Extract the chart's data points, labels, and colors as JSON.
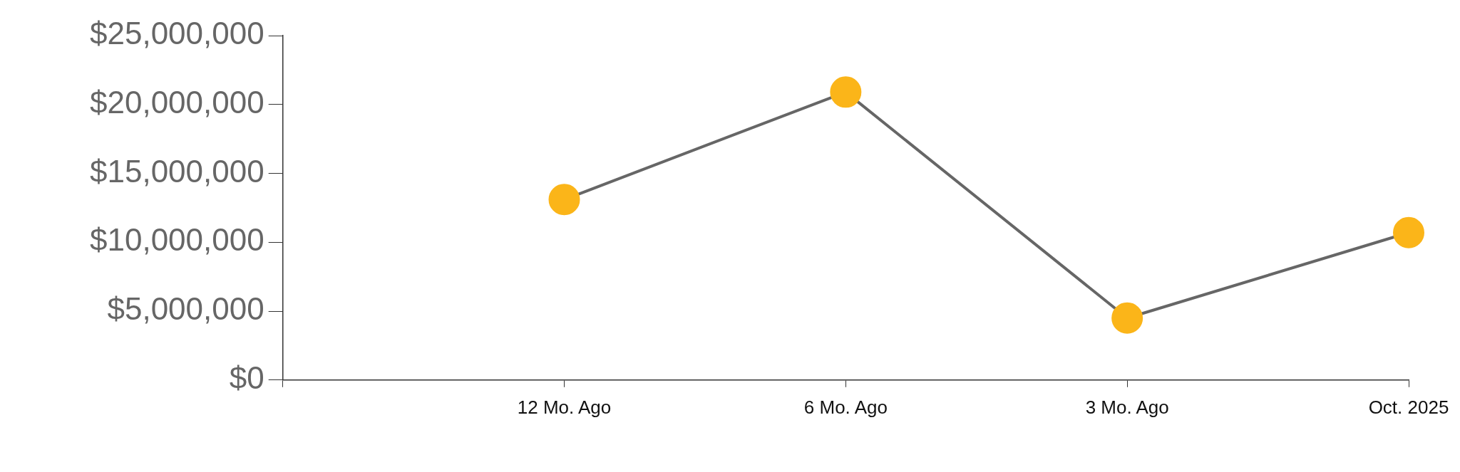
{
  "chart_data": {
    "type": "line",
    "categories": [
      null,
      "12 Mo. Ago",
      "6 Mo. Ago",
      "3 Mo. Ago",
      "Oct. 2025"
    ],
    "series": [
      {
        "color": "#fbb519",
        "values": [
          null,
          13100000,
          20900000,
          4500000,
          10700000
        ]
      }
    ],
    "ylim": [
      0,
      25000000
    ],
    "yticks": [
      {
        "value": 0,
        "label": "$0"
      },
      {
        "value": 5000000,
        "label": "$5,000,000"
      },
      {
        "value": 10000000,
        "label": "$10,000,000"
      },
      {
        "value": 15000000,
        "label": "$15,000,000"
      },
      {
        "value": 20000000,
        "label": "$20,000,000"
      },
      {
        "value": 25000000,
        "label": "$25,000,000"
      }
    ],
    "grid": false,
    "legend": false,
    "marker": "circle",
    "line_style": "solid"
  }
}
